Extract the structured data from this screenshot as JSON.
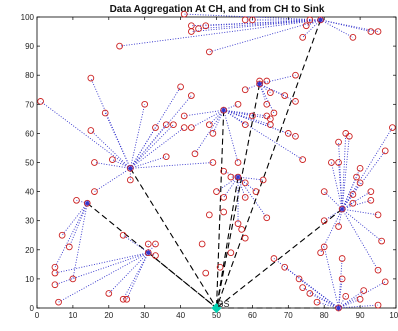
{
  "chart_data": {
    "type": "scatter",
    "title": "Data Aggregation At CH, and from CH to Sink",
    "xlabel": "",
    "ylabel": "",
    "xlim": [
      0,
      100
    ],
    "ylim": [
      0,
      100
    ],
    "xticks": [
      "0",
      "10",
      "20",
      "30",
      "40",
      "50",
      "60",
      "70",
      "80",
      "90",
      "100"
    ],
    "yticks": [
      "0",
      "10",
      "20",
      "30",
      "40",
      "50",
      "60",
      "70",
      "80",
      "90",
      "100"
    ],
    "grid": false,
    "sink": {
      "label": "BS",
      "x": 50,
      "y": 0
    },
    "colors": {
      "node": "#cc2222",
      "member_link": "#3333cc",
      "ch_link": "#000000",
      "ch_marker": "#3333cc",
      "sink": "#00d0b0"
    },
    "clusters": [
      {
        "ch": [
          14,
          36
        ],
        "members": [
          [
            7,
            25
          ],
          [
            5,
            14
          ],
          [
            11,
            37
          ],
          [
            9,
            21
          ],
          [
            10,
            10
          ]
        ]
      },
      {
        "ch": [
          26,
          48
        ],
        "members": [
          [
            1,
            71
          ],
          [
            15,
            79
          ],
          [
            19,
            67
          ],
          [
            15,
            61
          ],
          [
            16,
            50
          ],
          [
            21,
            51
          ],
          [
            16,
            40
          ],
          [
            26,
            44
          ],
          [
            30,
            70
          ],
          [
            33,
            62
          ],
          [
            36,
            63
          ],
          [
            36,
            52
          ],
          [
            40,
            76
          ],
          [
            43,
            73
          ],
          [
            38,
            63
          ],
          [
            41,
            62
          ],
          [
            49,
            50
          ]
        ]
      },
      {
        "ch": [
          31,
          19
        ],
        "members": [
          [
            31,
            22
          ],
          [
            33,
            22
          ],
          [
            33,
            18
          ],
          [
            24,
            25
          ],
          [
            20,
            5
          ],
          [
            24,
            3
          ],
          [
            25,
            3
          ],
          [
            6,
            2
          ],
          [
            5,
            12
          ],
          [
            5,
            8
          ]
        ]
      },
      {
        "ch": [
          52,
          68
        ],
        "members": [
          [
            41,
            66
          ],
          [
            43,
            62
          ],
          [
            48,
            63
          ],
          [
            44,
            53
          ],
          [
            49,
            60
          ],
          [
            56,
            70
          ],
          [
            56,
            50
          ],
          [
            58,
            63
          ],
          [
            60,
            66
          ],
          [
            64,
            66
          ],
          [
            65,
            65
          ],
          [
            65,
            63
          ],
          [
            70,
            60
          ],
          [
            72,
            59
          ],
          [
            74,
            51
          ]
        ]
      },
      {
        "ch": [
          62,
          77
        ],
        "members": [
          [
            58,
            75
          ],
          [
            62,
            78
          ],
          [
            64,
            78
          ],
          [
            65,
            74
          ],
          [
            64,
            70
          ],
          [
            66,
            67
          ],
          [
            69,
            73
          ],
          [
            72,
            80
          ],
          [
            72,
            71
          ]
        ]
      },
      {
        "ch": [
          79,
          99
        ],
        "members": [
          [
            43,
            95
          ],
          [
            43,
            97
          ],
          [
            45,
            96
          ],
          [
            47,
            97
          ],
          [
            48,
            88
          ],
          [
            58,
            99
          ],
          [
            60,
            99
          ],
          [
            74,
            93
          ],
          [
            75,
            97
          ],
          [
            76,
            99
          ],
          [
            88,
            93
          ],
          [
            93,
            95
          ],
          [
            95,
            95
          ],
          [
            23,
            90
          ],
          [
            41,
            101
          ]
        ]
      },
      {
        "ch": [
          56,
          45
        ],
        "members": [
          [
            50,
            40
          ],
          [
            52,
            38
          ],
          [
            52,
            47
          ],
          [
            54,
            45
          ],
          [
            58,
            38
          ],
          [
            58,
            43
          ],
          [
            61,
            40
          ],
          [
            63,
            44
          ],
          [
            64,
            31
          ],
          [
            56,
            29
          ]
        ]
      },
      {
        "ch": [
          85,
          34
        ],
        "members": [
          [
            80,
            40
          ],
          [
            82,
            50
          ],
          [
            84,
            57
          ],
          [
            84,
            50
          ],
          [
            84,
            28
          ],
          [
            86,
            60
          ],
          [
            87,
            59
          ],
          [
            88,
            39
          ],
          [
            88,
            36
          ],
          [
            89,
            45
          ],
          [
            90,
            48
          ],
          [
            90,
            43
          ],
          [
            93,
            40
          ],
          [
            93,
            37
          ],
          [
            95,
            32
          ],
          [
            97,
            54
          ],
          [
            99,
            62
          ],
          [
            96,
            23
          ],
          [
            95,
            13
          ],
          [
            79,
            19
          ],
          [
            80,
            30
          ]
        ]
      },
      {
        "ch": [
          84,
          0
        ],
        "members": [
          [
            66,
            17
          ],
          [
            69,
            14
          ],
          [
            73,
            10
          ],
          [
            74,
            7
          ],
          [
            76,
            5
          ],
          [
            78,
            2
          ],
          [
            85,
            10
          ],
          [
            86,
            4
          ],
          [
            90,
            3
          ],
          [
            91,
            6
          ],
          [
            97,
            9
          ],
          [
            95,
            1
          ],
          [
            85,
            17
          ],
          [
            80,
            21
          ]
        ]
      }
    ],
    "loose_nodes": [
      [
        46,
        22
      ],
      [
        47,
        12
      ],
      [
        48,
        32
      ],
      [
        52,
        33
      ],
      [
        51,
        14
      ],
      [
        54,
        19
      ],
      [
        57,
        27
      ],
      [
        58,
        24
      ]
    ]
  }
}
